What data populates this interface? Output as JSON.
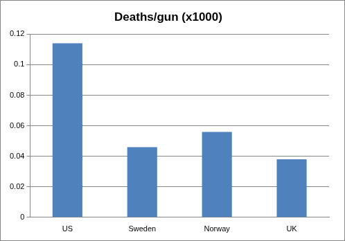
{
  "chart_data": {
    "type": "bar",
    "title": "Deaths/gun (x1000)",
    "categories": [
      "US",
      "Sweden",
      "Norway",
      "UK"
    ],
    "values": [
      0.114,
      0.046,
      0.056,
      0.038
    ],
    "color": "#4f81bd",
    "ylim": [
      0,
      0.12
    ],
    "yticks": [
      0,
      0.02,
      0.04,
      0.06,
      0.08,
      0.1,
      0.12
    ],
    "grid": true
  }
}
